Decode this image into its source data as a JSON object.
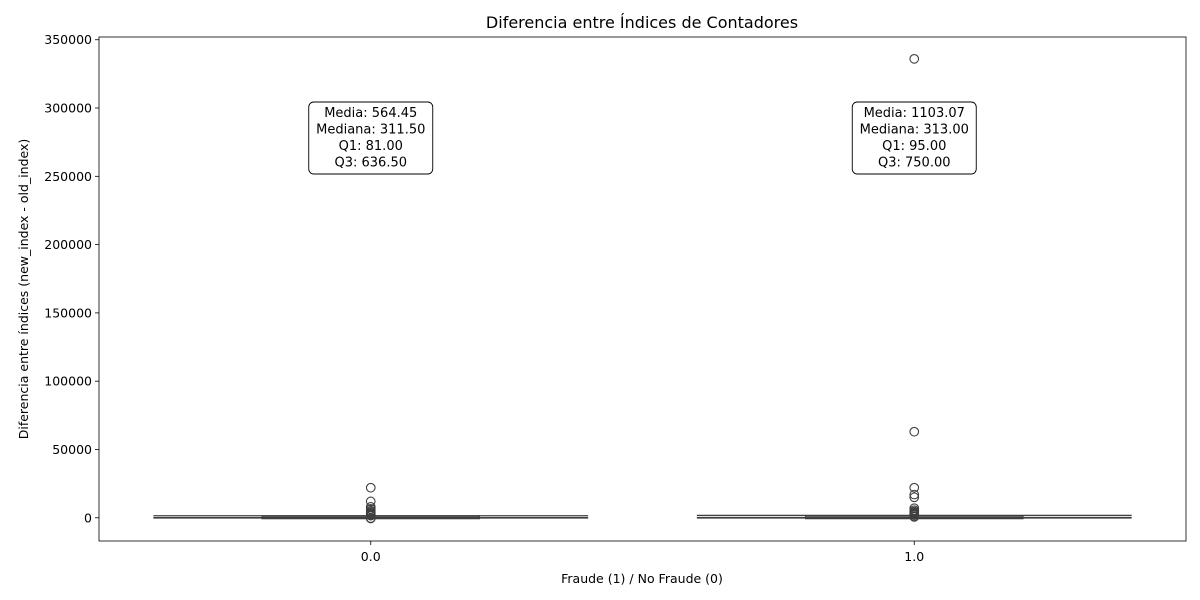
{
  "chart_data": {
    "type": "box",
    "title": "Diferencia entre Índices de Contadores",
    "xlabel": "Fraude (1) / No Fraude (0)",
    "ylabel": "Diferencia entre índices (new_index - old_index)",
    "ylim": [
      -17000,
      352000
    ],
    "yticks": [
      0,
      50000,
      100000,
      150000,
      200000,
      250000,
      300000,
      350000
    ],
    "ytick_labels": [
      "0",
      "50000",
      "100000",
      "150000",
      "200000",
      "250000",
      "300000",
      "350000"
    ],
    "categories": [
      "0.0",
      "1.0"
    ],
    "grid": false,
    "series": [
      {
        "category": "0.0",
        "q1": 81.0,
        "median": 311.5,
        "q3": 636.5,
        "mean": 564.45,
        "whisker_low": 0,
        "whisker_high": 1470,
        "outliers": [
          22000,
          12000,
          8000,
          6500,
          5200,
          4300,
          3600,
          3000,
          2500,
          2100,
          1800,
          1600,
          -200,
          -500
        ],
        "stats_text": [
          "Media: 564.45",
          "Mediana: 311.50",
          "Q1: 81.00",
          "Q3: 636.50"
        ]
      },
      {
        "category": "1.0",
        "q1": 95.0,
        "median": 313.0,
        "q3": 750.0,
        "mean": 1103.07,
        "whisker_low": 0,
        "whisker_high": 1730,
        "outliers": [
          336000,
          63000,
          22000,
          17000,
          15000,
          7000,
          5500,
          4500,
          3800,
          3100,
          2600,
          2200,
          1900,
          1000,
          600
        ],
        "stats_text": [
          "Media: 1103.07",
          "Mediana: 313.00",
          "Q1: 95.00",
          "Q3: 750.00"
        ]
      }
    ]
  }
}
